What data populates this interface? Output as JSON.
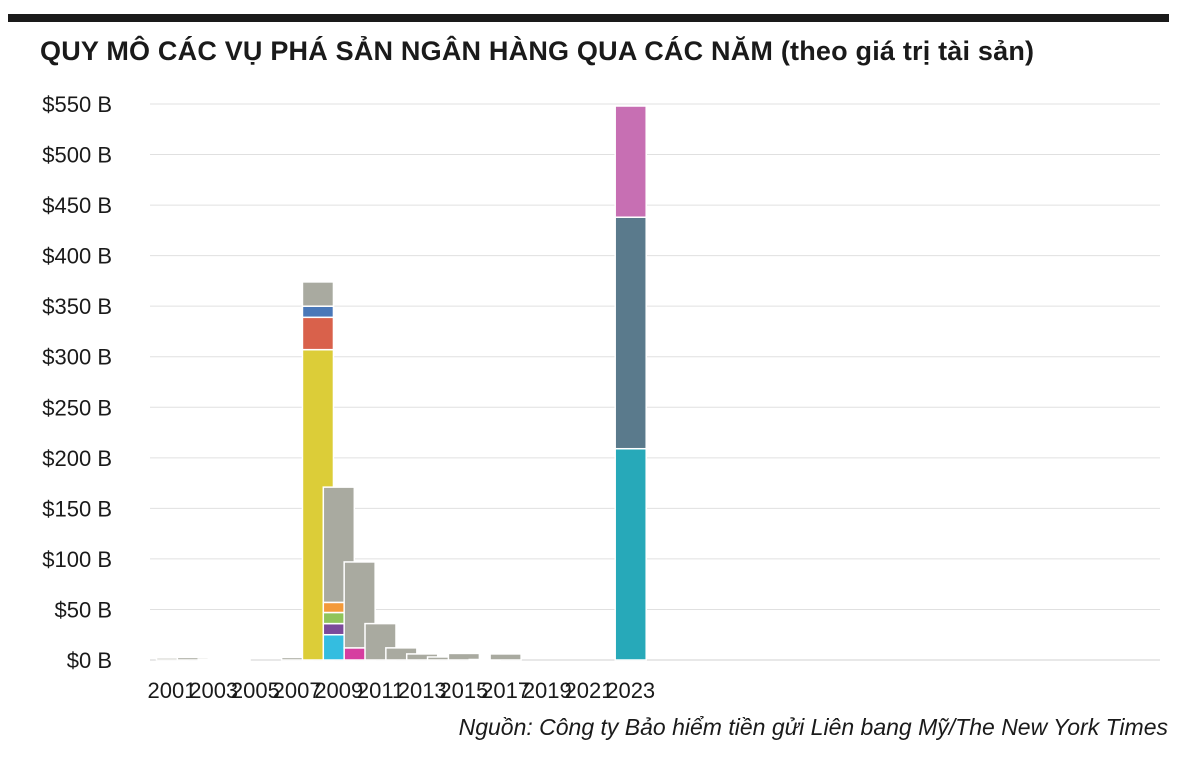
{
  "title": "QUY MÔ CÁC VỤ PHÁ SẢN NGÂN HÀNG QUA CÁC NĂM (theo giá trị tài sản)",
  "source": "Nguồn: Công ty Bảo hiểm tiền gửi Liên bang Mỹ/The New York Times",
  "chart_data": {
    "type": "bar",
    "stacked": true,
    "title": "QUY MÔ CÁC VỤ PHÁ SẢN NGÂN HÀNG QUA CÁC NĂM (theo giá trị tài sản)",
    "xlabel": "",
    "ylabel": "",
    "ylim": [
      0,
      550
    ],
    "y_ticks": [
      0,
      50,
      100,
      150,
      200,
      250,
      300,
      350,
      400,
      450,
      500,
      550
    ],
    "y_tick_labels": [
      "$0 B",
      "$50 B",
      "$100 B",
      "$150 B",
      "$200 B",
      "$250 B",
      "$300 B",
      "$350 B",
      "$400 B",
      "$450 B",
      "$500 B",
      "$550 B"
    ],
    "x_tick_labels": [
      "2001",
      "2003",
      "2005",
      "2007",
      "2009",
      "2011",
      "2013",
      "2015",
      "2017",
      "2019",
      "2021",
      "2023"
    ],
    "grid": true,
    "bars": [
      {
        "year": 2001,
        "segments": [
          {
            "value": 2,
            "color": "#a9aaa0"
          }
        ]
      },
      {
        "year": 2002,
        "segments": [
          {
            "value": 2.5,
            "color": "#a9aaa0"
          }
        ]
      },
      {
        "year": 2003,
        "segments": [
          {
            "value": 1,
            "color": "#a9aaa0"
          }
        ]
      },
      {
        "year": 2004,
        "segments": [
          {
            "value": 0.5,
            "color": "#a9aaa0"
          }
        ]
      },
      {
        "year": 2005,
        "segments": []
      },
      {
        "year": 2006,
        "segments": []
      },
      {
        "year": 2007,
        "segments": [
          {
            "value": 2.5,
            "color": "#a9aaa0"
          }
        ]
      },
      {
        "year": 2008,
        "segments": [
          {
            "value": 307,
            "color": "#dccd38"
          },
          {
            "value": 32,
            "color": "#d9614b"
          },
          {
            "value": 11,
            "color": "#4a78b8"
          },
          {
            "value": 24,
            "color": "#a9aaa0"
          }
        ]
      },
      {
        "year": 2009,
        "segments": [
          {
            "value": 25,
            "color": "#34bde0"
          },
          {
            "value": 11,
            "color": "#7b4a9a"
          },
          {
            "value": 11,
            "color": "#8fc45a"
          },
          {
            "value": 10,
            "color": "#f39a3a"
          },
          {
            "value": 114,
            "color": "#a9aaa0"
          }
        ]
      },
      {
        "year": 2010,
        "segments": [
          {
            "value": 12,
            "color": "#d63ea0"
          },
          {
            "value": 85,
            "color": "#a9aaa0"
          }
        ]
      },
      {
        "year": 2011,
        "segments": [
          {
            "value": 36,
            "color": "#a9aaa0"
          }
        ]
      },
      {
        "year": 2012,
        "segments": [
          {
            "value": 12,
            "color": "#a9aaa0"
          }
        ]
      },
      {
        "year": 2013,
        "segments": [
          {
            "value": 6,
            "color": "#a9aaa0"
          }
        ]
      },
      {
        "year": 2014,
        "segments": [
          {
            "value": 3,
            "color": "#a9aaa0"
          }
        ]
      },
      {
        "year": 2015,
        "segments": [
          {
            "value": 6.5,
            "color": "#a9aaa0"
          }
        ]
      },
      {
        "year": 2016,
        "segments": [
          {
            "value": 0.5,
            "color": "#a9aaa0"
          }
        ]
      },
      {
        "year": 2017,
        "segments": [
          {
            "value": 6,
            "color": "#a9aaa0"
          }
        ]
      },
      {
        "year": 2018,
        "segments": []
      },
      {
        "year": 2019,
        "segments": []
      },
      {
        "year": 2020,
        "segments": []
      },
      {
        "year": 2021,
        "segments": []
      },
      {
        "year": 2022,
        "segments": []
      },
      {
        "year": 2023,
        "segments": [
          {
            "value": 209,
            "color": "#27a9b9"
          },
          {
            "value": 229,
            "color": "#5a7a8c"
          },
          {
            "value": 110,
            "color": "#c76fb3"
          }
        ]
      }
    ]
  },
  "colors": {
    "grid": "#e0e0e0",
    "text": "#1a1a1a",
    "segment_border": "#ffffff"
  }
}
